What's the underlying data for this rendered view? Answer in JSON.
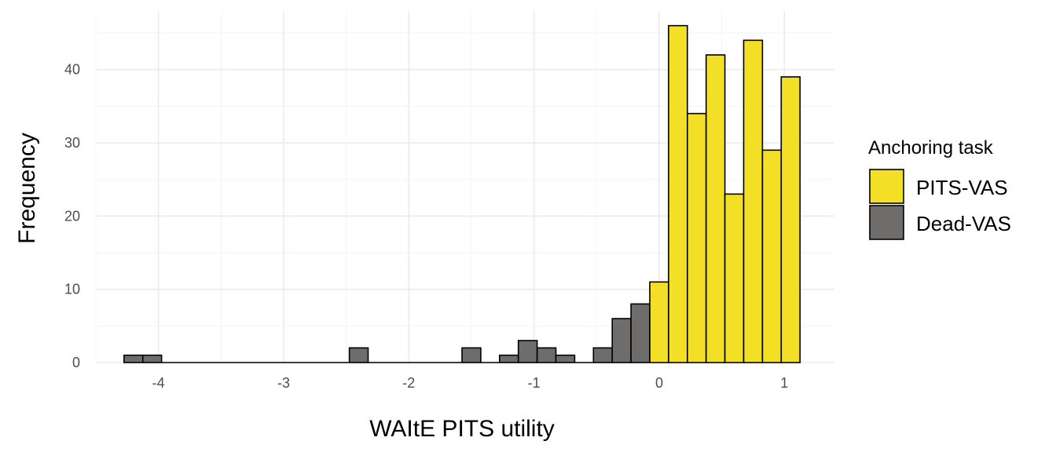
{
  "chart_data": {
    "type": "bar",
    "subtype": "histogram",
    "title": "",
    "xlabel": "WAItE PITS utility",
    "ylabel": "Frequency",
    "xlim": [
      -4.5,
      1.4
    ],
    "ylim": [
      0,
      48
    ],
    "x_ticks": [
      -4,
      -3,
      -2,
      -1,
      0,
      1
    ],
    "x_tick_labels": [
      "-4",
      "-3",
      "-2",
      "-1",
      "0",
      "1"
    ],
    "y_ticks": [
      0,
      10,
      20,
      30,
      40
    ],
    "y_tick_labels": [
      "0",
      "10",
      "20",
      "30",
      "40"
    ],
    "grid": true,
    "bin_width": 0.15,
    "legend": {
      "title": "Anchoring task",
      "position": "right",
      "entries": [
        {
          "label": "PITS-VAS",
          "color": "#f3df25"
        },
        {
          "label": "Dead-VAS",
          "color": "#6e6d6b"
        }
      ]
    },
    "series": [
      {
        "name": "Dead-VAS",
        "color": "#6e6d6b",
        "bins": [
          {
            "x": -4.2,
            "count": 1
          },
          {
            "x": -4.05,
            "count": 1
          },
          {
            "x": -3.9,
            "count": 0
          },
          {
            "x": -3.75,
            "count": 0
          },
          {
            "x": -3.6,
            "count": 0
          },
          {
            "x": -3.45,
            "count": 0
          },
          {
            "x": -3.3,
            "count": 0
          },
          {
            "x": -3.15,
            "count": 0
          },
          {
            "x": -3.0,
            "count": 0
          },
          {
            "x": -2.85,
            "count": 0
          },
          {
            "x": -2.7,
            "count": 0
          },
          {
            "x": -2.55,
            "count": 0
          },
          {
            "x": -2.4,
            "count": 2
          },
          {
            "x": -2.25,
            "count": 0
          },
          {
            "x": -2.1,
            "count": 0
          },
          {
            "x": -1.95,
            "count": 0
          },
          {
            "x": -1.8,
            "count": 0
          },
          {
            "x": -1.65,
            "count": 0
          },
          {
            "x": -1.5,
            "count": 2
          },
          {
            "x": -1.35,
            "count": 0
          },
          {
            "x": -1.2,
            "count": 1
          },
          {
            "x": -1.05,
            "count": 3
          },
          {
            "x": -0.9,
            "count": 2
          },
          {
            "x": -0.75,
            "count": 1
          },
          {
            "x": -0.6,
            "count": 0
          },
          {
            "x": -0.45,
            "count": 2
          },
          {
            "x": -0.3,
            "count": 6
          },
          {
            "x": -0.15,
            "count": 8
          }
        ]
      },
      {
        "name": "PITS-VAS",
        "color": "#f3df25",
        "bins": [
          {
            "x": 0.0,
            "count": 11
          },
          {
            "x": 0.15,
            "count": 46
          },
          {
            "x": 0.3,
            "count": 34
          },
          {
            "x": 0.45,
            "count": 42
          },
          {
            "x": 0.6,
            "count": 23
          },
          {
            "x": 0.75,
            "count": 44
          },
          {
            "x": 0.9,
            "count": 29
          },
          {
            "x": 1.05,
            "count": 39
          }
        ]
      }
    ]
  }
}
